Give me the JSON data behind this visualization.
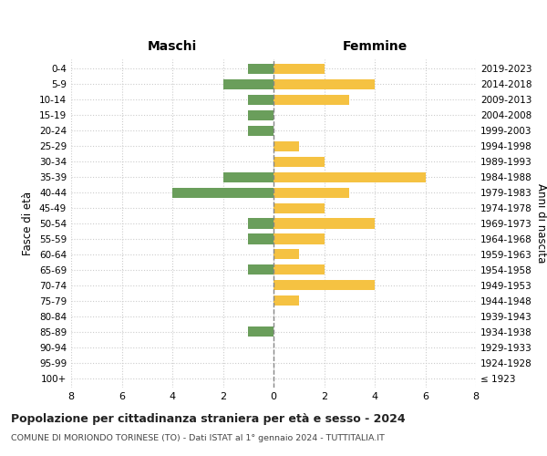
{
  "age_groups": [
    "100+",
    "95-99",
    "90-94",
    "85-89",
    "80-84",
    "75-79",
    "70-74",
    "65-69",
    "60-64",
    "55-59",
    "50-54",
    "45-49",
    "40-44",
    "35-39",
    "30-34",
    "25-29",
    "20-24",
    "15-19",
    "10-14",
    "5-9",
    "0-4"
  ],
  "birth_years": [
    "≤ 1923",
    "1924-1928",
    "1929-1933",
    "1934-1938",
    "1939-1943",
    "1944-1948",
    "1949-1953",
    "1954-1958",
    "1959-1963",
    "1964-1968",
    "1969-1973",
    "1974-1978",
    "1979-1983",
    "1984-1988",
    "1989-1993",
    "1994-1998",
    "1999-2003",
    "2004-2008",
    "2009-2013",
    "2014-2018",
    "2019-2023"
  ],
  "maschi": [
    0,
    0,
    0,
    1,
    0,
    0,
    0,
    1,
    0,
    1,
    1,
    0,
    4,
    2,
    0,
    0,
    1,
    1,
    1,
    2,
    1
  ],
  "femmine": [
    0,
    0,
    0,
    0,
    0,
    1,
    4,
    2,
    1,
    2,
    4,
    2,
    3,
    6,
    2,
    1,
    0,
    0,
    3,
    4,
    2
  ],
  "color_maschi": "#6a9e5b",
  "color_femmine": "#f5c242",
  "title": "Popolazione per cittadinanza straniera per età e sesso - 2024",
  "subtitle": "COMUNE DI MORIONDO TORINESE (TO) - Dati ISTAT al 1° gennaio 2024 - TUTTITALIA.IT",
  "header_left": "Maschi",
  "header_right": "Femmine",
  "ylabel_left": "Fasce di età",
  "ylabel_right": "Anni di nascita",
  "xlim": 8,
  "background_color": "#ffffff",
  "grid_color": "#cccccc",
  "bar_height": 0.65
}
